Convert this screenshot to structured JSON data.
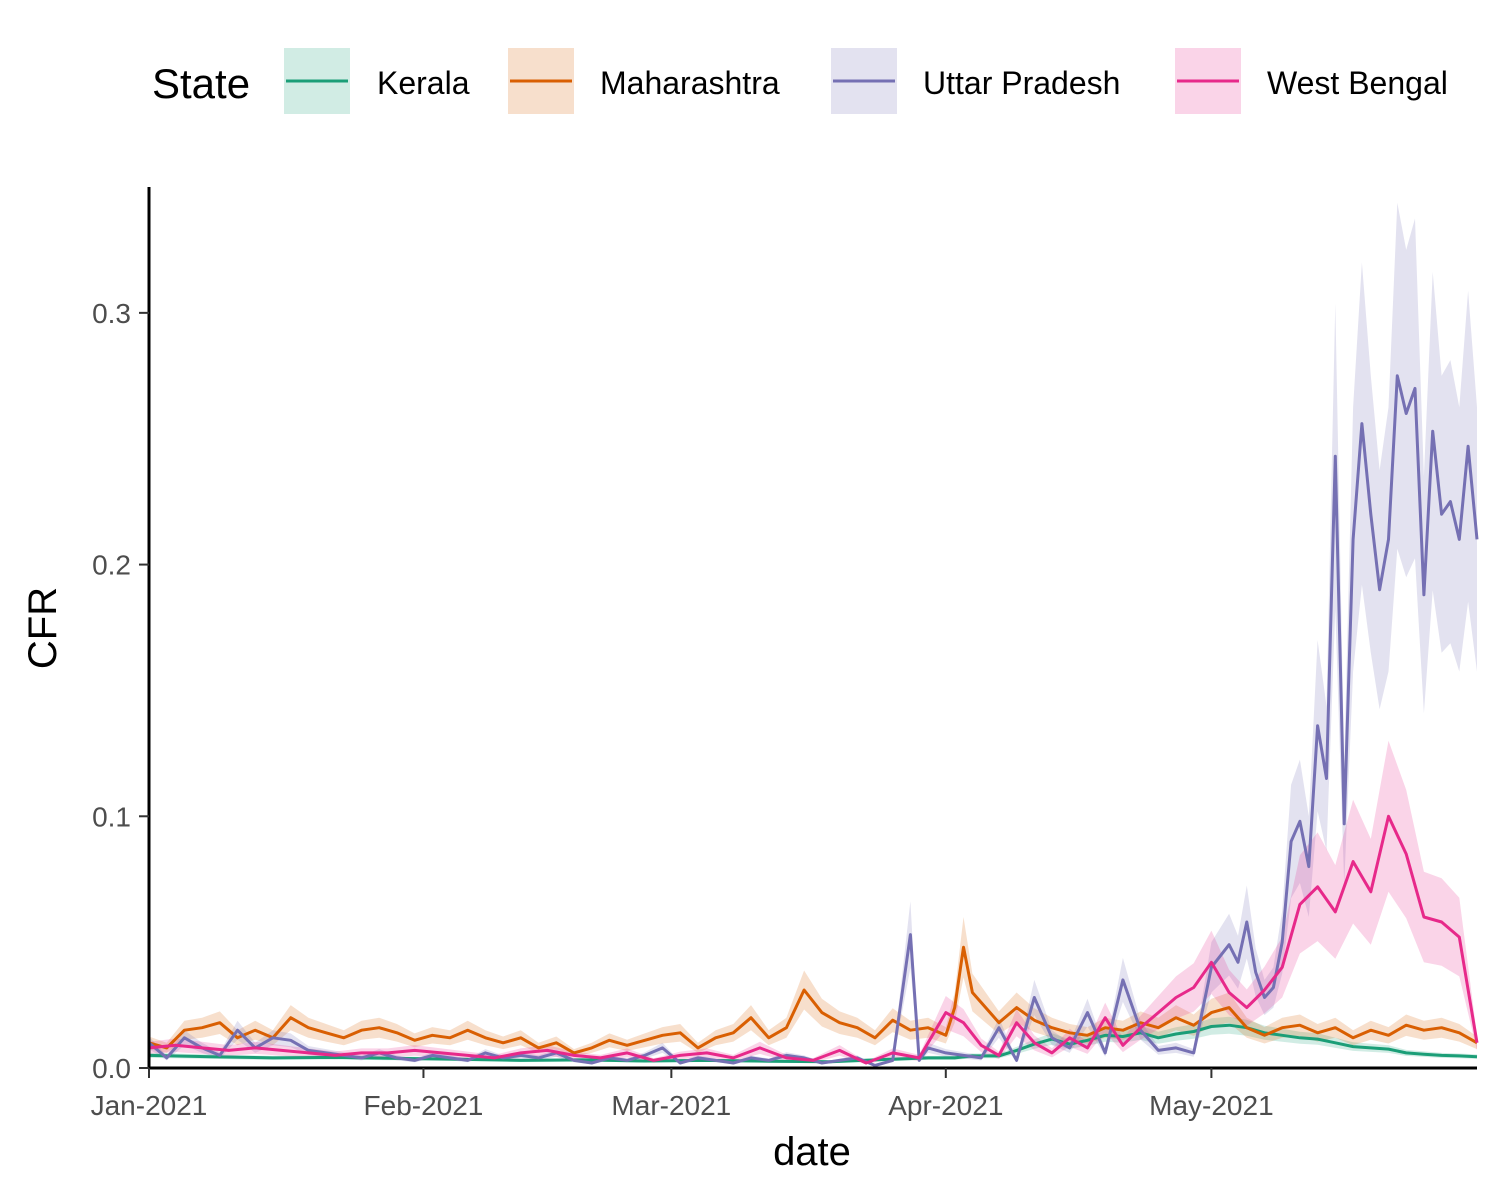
{
  "chart_data": {
    "type": "line",
    "xlabel": "date",
    "ylabel": "CFR",
    "x_start": "2021-01-01",
    "x_end": "2021-05-31",
    "xlim": [
      "2021-01-01",
      "2021-05-31"
    ],
    "ylim": [
      0,
      0.35
    ],
    "x_ticks": [
      {
        "date": "2021-01-01",
        "label": "Jan-2021"
      },
      {
        "date": "2021-02-01",
        "label": "Feb-2021"
      },
      {
        "date": "2021-03-01",
        "label": "Mar-2021"
      },
      {
        "date": "2021-04-01",
        "label": "Apr-2021"
      },
      {
        "date": "2021-05-01",
        "label": "May-2021"
      }
    ],
    "y_ticks": [
      {
        "value": 0.0,
        "label": "0.0"
      },
      {
        "value": 0.1,
        "label": "0.1"
      },
      {
        "value": 0.2,
        "label": "0.2"
      },
      {
        "value": 0.3,
        "label": "0.3"
      }
    ],
    "grid": false,
    "legend": {
      "title": "State",
      "position": "top"
    },
    "series": [
      {
        "name": "Kerala",
        "color": "#1b9e77",
        "band_width": 0.2,
        "values": [
          [
            0,
            0.005
          ],
          [
            7,
            0.0045
          ],
          [
            14,
            0.004
          ],
          [
            21,
            0.0042
          ],
          [
            28,
            0.0038
          ],
          [
            35,
            0.0035
          ],
          [
            42,
            0.003
          ],
          [
            49,
            0.0032
          ],
          [
            56,
            0.0028
          ],
          [
            63,
            0.003
          ],
          [
            70,
            0.0027
          ],
          [
            77,
            0.0025
          ],
          [
            84,
            0.0035
          ],
          [
            88,
            0.004
          ],
          [
            91,
            0.004
          ],
          [
            93,
            0.0048
          ],
          [
            96,
            0.0048
          ],
          [
            98,
            0.007
          ],
          [
            100,
            0.0095
          ],
          [
            102,
            0.0115
          ],
          [
            104,
            0.0095
          ],
          [
            106,
            0.011
          ],
          [
            108,
            0.013
          ],
          [
            110,
            0.0125
          ],
          [
            112,
            0.014
          ],
          [
            114,
            0.012
          ],
          [
            116,
            0.0135
          ],
          [
            118,
            0.0145
          ],
          [
            120,
            0.0165
          ],
          [
            122,
            0.017
          ],
          [
            124,
            0.016
          ],
          [
            126,
            0.014
          ],
          [
            128,
            0.013
          ],
          [
            130,
            0.012
          ],
          [
            132,
            0.0115
          ],
          [
            134,
            0.01
          ],
          [
            136,
            0.0085
          ],
          [
            138,
            0.008
          ],
          [
            140,
            0.0075
          ],
          [
            142,
            0.006
          ],
          [
            144,
            0.0055
          ],
          [
            146,
            0.005
          ],
          [
            148,
            0.0048
          ],
          [
            150,
            0.0045
          ]
        ]
      },
      {
        "name": "Maharashtra",
        "color": "#d95f02",
        "band_width": 0.25,
        "values": [
          [
            0,
            0.01
          ],
          [
            2,
            0.008
          ],
          [
            4,
            0.015
          ],
          [
            6,
            0.016
          ],
          [
            8,
            0.018
          ],
          [
            10,
            0.012
          ],
          [
            12,
            0.015
          ],
          [
            14,
            0.012
          ],
          [
            16,
            0.02
          ],
          [
            18,
            0.016
          ],
          [
            20,
            0.014
          ],
          [
            22,
            0.012
          ],
          [
            24,
            0.015
          ],
          [
            26,
            0.016
          ],
          [
            28,
            0.014
          ],
          [
            30,
            0.011
          ],
          [
            32,
            0.013
          ],
          [
            34,
            0.012
          ],
          [
            36,
            0.015
          ],
          [
            38,
            0.012
          ],
          [
            40,
            0.01
          ],
          [
            42,
            0.012
          ],
          [
            44,
            0.008
          ],
          [
            46,
            0.01
          ],
          [
            48,
            0.006
          ],
          [
            50,
            0.008
          ],
          [
            52,
            0.011
          ],
          [
            54,
            0.009
          ],
          [
            56,
            0.011
          ],
          [
            58,
            0.013
          ],
          [
            60,
            0.014
          ],
          [
            62,
            0.008
          ],
          [
            64,
            0.012
          ],
          [
            66,
            0.014
          ],
          [
            68,
            0.02
          ],
          [
            70,
            0.012
          ],
          [
            72,
            0.016
          ],
          [
            74,
            0.031
          ],
          [
            76,
            0.022
          ],
          [
            78,
            0.018
          ],
          [
            80,
            0.016
          ],
          [
            82,
            0.012
          ],
          [
            84,
            0.019
          ],
          [
            86,
            0.015
          ],
          [
            88,
            0.016
          ],
          [
            90,
            0.013
          ],
          [
            91,
            0.024
          ],
          [
            92,
            0.048
          ],
          [
            93,
            0.03
          ],
          [
            95,
            0.022
          ],
          [
            96,
            0.018
          ],
          [
            98,
            0.024
          ],
          [
            100,
            0.019
          ],
          [
            102,
            0.016
          ],
          [
            104,
            0.014
          ],
          [
            106,
            0.013
          ],
          [
            108,
            0.016
          ],
          [
            110,
            0.015
          ],
          [
            112,
            0.018
          ],
          [
            114,
            0.016
          ],
          [
            116,
            0.02
          ],
          [
            118,
            0.017
          ],
          [
            120,
            0.022
          ],
          [
            122,
            0.024
          ],
          [
            124,
            0.016
          ],
          [
            126,
            0.013
          ],
          [
            128,
            0.016
          ],
          [
            130,
            0.017
          ],
          [
            132,
            0.014
          ],
          [
            134,
            0.016
          ],
          [
            136,
            0.012
          ],
          [
            138,
            0.015
          ],
          [
            140,
            0.013
          ],
          [
            142,
            0.017
          ],
          [
            144,
            0.015
          ],
          [
            146,
            0.016
          ],
          [
            148,
            0.014
          ],
          [
            150,
            0.01
          ]
        ]
      },
      {
        "name": "Uttar Pradesh",
        "color": "#7570b3",
        "band_width": 0.25,
        "values": [
          [
            0,
            0.01
          ],
          [
            2,
            0.004
          ],
          [
            4,
            0.012
          ],
          [
            6,
            0.008
          ],
          [
            8,
            0.005
          ],
          [
            10,
            0.015
          ],
          [
            12,
            0.008
          ],
          [
            14,
            0.012
          ],
          [
            16,
            0.011
          ],
          [
            18,
            0.007
          ],
          [
            20,
            0.006
          ],
          [
            22,
            0.005
          ],
          [
            24,
            0.004
          ],
          [
            26,
            0.006
          ],
          [
            28,
            0.004
          ],
          [
            30,
            0.003
          ],
          [
            32,
            0.005
          ],
          [
            34,
            0.004
          ],
          [
            36,
            0.003
          ],
          [
            38,
            0.006
          ],
          [
            40,
            0.004
          ],
          [
            42,
            0.005
          ],
          [
            44,
            0.004
          ],
          [
            46,
            0.006
          ],
          [
            48,
            0.003
          ],
          [
            50,
            0.002
          ],
          [
            52,
            0.004
          ],
          [
            54,
            0.003
          ],
          [
            56,
            0.005
          ],
          [
            58,
            0.008
          ],
          [
            60,
            0.002
          ],
          [
            62,
            0.004
          ],
          [
            64,
            0.003
          ],
          [
            66,
            0.002
          ],
          [
            68,
            0.004
          ],
          [
            70,
            0.003
          ],
          [
            72,
            0.005
          ],
          [
            74,
            0.004
          ],
          [
            76,
            0.002
          ],
          [
            78,
            0.003
          ],
          [
            80,
            0.004
          ],
          [
            82,
            0.001
          ],
          [
            84,
            0.003
          ],
          [
            86,
            0.053
          ],
          [
            87,
            0.003
          ],
          [
            88,
            0.008
          ],
          [
            90,
            0.006
          ],
          [
            92,
            0.005
          ],
          [
            94,
            0.004
          ],
          [
            96,
            0.016
          ],
          [
            98,
            0.003
          ],
          [
            100,
            0.028
          ],
          [
            102,
            0.012
          ],
          [
            104,
            0.008
          ],
          [
            106,
            0.022
          ],
          [
            108,
            0.006
          ],
          [
            110,
            0.035
          ],
          [
            112,
            0.015
          ],
          [
            114,
            0.007
          ],
          [
            116,
            0.008
          ],
          [
            118,
            0.006
          ],
          [
            120,
            0.04
          ],
          [
            122,
            0.049
          ],
          [
            123,
            0.042
          ],
          [
            124,
            0.058
          ],
          [
            125,
            0.038
          ],
          [
            126,
            0.028
          ],
          [
            127,
            0.032
          ],
          [
            128,
            0.05
          ],
          [
            129,
            0.09
          ],
          [
            130,
            0.098
          ],
          [
            131,
            0.08
          ],
          [
            132,
            0.136
          ],
          [
            133,
            0.115
          ],
          [
            134,
            0.243
          ],
          [
            135,
            0.097
          ],
          [
            136,
            0.21
          ],
          [
            137,
            0.256
          ],
          [
            138,
            0.22
          ],
          [
            139,
            0.19
          ],
          [
            140,
            0.21
          ],
          [
            141,
            0.275
          ],
          [
            142,
            0.26
          ],
          [
            143,
            0.27
          ],
          [
            144,
            0.188
          ],
          [
            145,
            0.253
          ],
          [
            146,
            0.22
          ],
          [
            147,
            0.225
          ],
          [
            148,
            0.21
          ],
          [
            149,
            0.247
          ],
          [
            150,
            0.21
          ]
        ]
      },
      {
        "name": "West Bengal",
        "color": "#e7298a",
        "band_width": 0.3,
        "values": [
          [
            0,
            0.008
          ],
          [
            3,
            0.009
          ],
          [
            6,
            0.008
          ],
          [
            9,
            0.007
          ],
          [
            12,
            0.008
          ],
          [
            15,
            0.007
          ],
          [
            18,
            0.006
          ],
          [
            21,
            0.005
          ],
          [
            24,
            0.006
          ],
          [
            27,
            0.006
          ],
          [
            30,
            0.007
          ],
          [
            33,
            0.006
          ],
          [
            36,
            0.005
          ],
          [
            39,
            0.004
          ],
          [
            42,
            0.006
          ],
          [
            45,
            0.007
          ],
          [
            48,
            0.005
          ],
          [
            51,
            0.004
          ],
          [
            54,
            0.006
          ],
          [
            57,
            0.003
          ],
          [
            60,
            0.005
          ],
          [
            63,
            0.006
          ],
          [
            66,
            0.004
          ],
          [
            69,
            0.008
          ],
          [
            72,
            0.004
          ],
          [
            75,
            0.003
          ],
          [
            78,
            0.007
          ],
          [
            81,
            0.002
          ],
          [
            84,
            0.006
          ],
          [
            87,
            0.004
          ],
          [
            90,
            0.022
          ],
          [
            92,
            0.018
          ],
          [
            94,
            0.009
          ],
          [
            96,
            0.005
          ],
          [
            98,
            0.018
          ],
          [
            100,
            0.01
          ],
          [
            102,
            0.006
          ],
          [
            104,
            0.012
          ],
          [
            106,
            0.008
          ],
          [
            108,
            0.02
          ],
          [
            110,
            0.009
          ],
          [
            112,
            0.016
          ],
          [
            114,
            0.022
          ],
          [
            116,
            0.028
          ],
          [
            118,
            0.032
          ],
          [
            120,
            0.042
          ],
          [
            122,
            0.03
          ],
          [
            124,
            0.024
          ],
          [
            126,
            0.031
          ],
          [
            128,
            0.04
          ],
          [
            130,
            0.065
          ],
          [
            132,
            0.072
          ],
          [
            134,
            0.062
          ],
          [
            136,
            0.082
          ],
          [
            138,
            0.07
          ],
          [
            140,
            0.1
          ],
          [
            142,
            0.085
          ],
          [
            144,
            0.06
          ],
          [
            146,
            0.058
          ],
          [
            148,
            0.052
          ],
          [
            150,
            0.01
          ]
        ]
      }
    ]
  }
}
